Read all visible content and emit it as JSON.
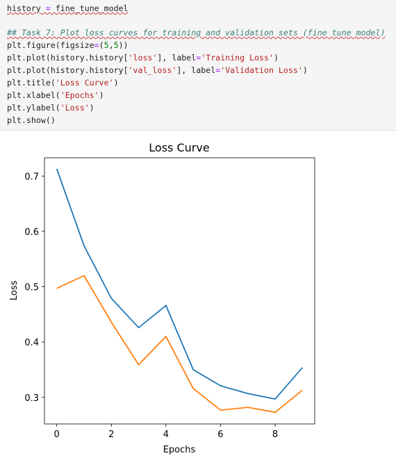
{
  "code": {
    "lines": [
      [
        {
          "t": "history",
          "c": "#212121"
        },
        {
          "t": " = ",
          "c": "#aa22ff"
        },
        {
          "t": "fine_tune_model",
          "c": "#212121"
        }
      ],
      [
        {
          "t": "## Task 7: Plot loss curves for training and validation sets (fine tune model)",
          "c": "#3d7b7b"
        }
      ],
      [
        {
          "t": "plt.figure(figsize",
          "c": "#212121"
        },
        {
          "t": "=",
          "c": "#aa22ff"
        },
        {
          "t": "(",
          "c": "#212121"
        },
        {
          "t": "5",
          "c": "#008000"
        },
        {
          "t": ",",
          "c": "#212121"
        },
        {
          "t": "5",
          "c": "#008000"
        },
        {
          "t": "))",
          "c": "#212121"
        }
      ],
      [
        {
          "t": "plt.plot(history.history[",
          "c": "#212121"
        },
        {
          "t": "'loss'",
          "c": "#ba2121"
        },
        {
          "t": "], label",
          "c": "#212121"
        },
        {
          "t": "=",
          "c": "#aa22ff"
        },
        {
          "t": "'Training Loss'",
          "c": "#ba2121"
        },
        {
          "t": ")",
          "c": "#212121"
        }
      ],
      [
        {
          "t": "plt.plot(history.history[",
          "c": "#212121"
        },
        {
          "t": "'val_loss'",
          "c": "#ba2121"
        },
        {
          "t": "], label",
          "c": "#212121"
        },
        {
          "t": "=",
          "c": "#aa22ff"
        },
        {
          "t": "'Validation Loss'",
          "c": "#ba2121"
        },
        {
          "t": ")",
          "c": "#212121"
        }
      ],
      [
        {
          "t": "plt.title(",
          "c": "#212121"
        },
        {
          "t": "'Loss Curve'",
          "c": "#ba2121"
        },
        {
          "t": ")",
          "c": "#212121"
        }
      ],
      [
        {
          "t": "plt.xlabel(",
          "c": "#212121"
        },
        {
          "t": "'Epochs'",
          "c": "#ba2121"
        },
        {
          "t": ")",
          "c": "#212121"
        }
      ],
      [
        {
          "t": "plt.ylabel(",
          "c": "#212121"
        },
        {
          "t": "'Loss'",
          "c": "#ba2121"
        },
        {
          "t": ")",
          "c": "#212121"
        }
      ],
      [
        {
          "t": "plt.show()",
          "c": "#212121"
        }
      ]
    ]
  },
  "chart_data": {
    "type": "line",
    "title": "Loss Curve",
    "x_label": "Epochs",
    "y_label": "Loss",
    "x": [
      0,
      1,
      2,
      3,
      4,
      5,
      6,
      7,
      8,
      9
    ],
    "series": [
      {
        "color": "#1f77b4",
        "values": [
          0.713,
          0.574,
          0.479,
          0.426,
          0.466,
          0.35,
          0.321,
          0.307,
          0.297,
          0.354
        ]
      },
      {
        "color": "#ff7f0e",
        "values": [
          0.497,
          0.52,
          0.436,
          0.359,
          0.41,
          0.316,
          0.277,
          0.282,
          0.273,
          0.313
        ]
      }
    ],
    "xlim": [
      -0.45,
      9.45
    ],
    "xticks": [
      0,
      2,
      4,
      6,
      8
    ],
    "ylim": [
      0.252,
      0.733
    ],
    "yticks": [
      0.3,
      0.4,
      0.5,
      0.6,
      0.7
    ],
    "grid": false
  }
}
